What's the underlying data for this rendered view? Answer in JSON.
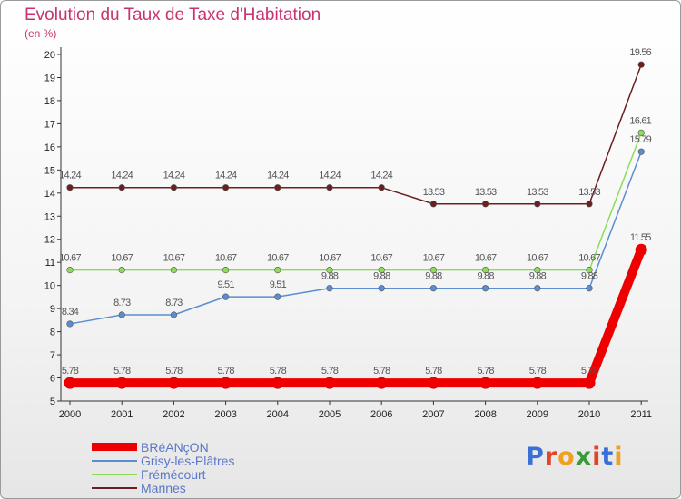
{
  "title": "Evolution du Taux de Taxe d'Habitation",
  "subtitle": "(en %)",
  "logo": {
    "text": "Proxiti",
    "letter_colors": [
      "#3a6fd8",
      "#e0452a",
      "#f0a020",
      "#3a9a3a",
      "#e0452a",
      "#3a6fd8",
      "#f0a020"
    ]
  },
  "chart_data": {
    "type": "line",
    "title": "Evolution du Taux de Taxe d'Habitation",
    "ylabel": "(en %)",
    "xlabel": "",
    "x": [
      "2000",
      "2001",
      "2002",
      "2003",
      "2004",
      "2005",
      "2006",
      "2007",
      "2008",
      "2009",
      "2010",
      "2011"
    ],
    "ylim": [
      5,
      20
    ],
    "yticks": [
      "5",
      "6",
      "7",
      "8",
      "9",
      "10",
      "11",
      "12",
      "13",
      "14",
      "15",
      "16",
      "17",
      "18",
      "19",
      "20"
    ],
    "grid": false,
    "legend_position": "bottom-left",
    "series": [
      {
        "name": "BRéANçON",
        "color": "#ee0000",
        "thick": true,
        "values": [
          5.78,
          5.78,
          5.78,
          5.78,
          5.78,
          5.78,
          5.78,
          5.78,
          5.78,
          5.78,
          5.78,
          11.55
        ],
        "labels": [
          "5.78",
          "5.78",
          "5.78",
          "5.78",
          "5.78",
          "5.78",
          "5.78",
          "5.78",
          "5.78",
          "5.78",
          "5.78",
          "11.55"
        ]
      },
      {
        "name": "Grisy-les-Plâtres",
        "color": "#5b8ed0",
        "thick": false,
        "values": [
          8.34,
          8.73,
          8.73,
          9.51,
          9.51,
          9.88,
          9.88,
          9.88,
          9.88,
          9.88,
          9.88,
          15.79
        ],
        "labels": [
          "8.34",
          "8.73",
          "8.73",
          "9.51",
          "9.51",
          "9.88",
          "9.88",
          "9.88",
          "9.88",
          "9.88",
          "9.88",
          "15.79"
        ]
      },
      {
        "name": "Frémécourt",
        "color": "#8cdc5a",
        "thick": false,
        "values": [
          10.67,
          10.67,
          10.67,
          10.67,
          10.67,
          10.67,
          10.67,
          10.67,
          10.67,
          10.67,
          10.67,
          16.61
        ],
        "labels": [
          "10.67",
          "10.67",
          "10.67",
          "10.67",
          "10.67",
          "10.67",
          "10.67",
          "10.67",
          "10.67",
          "10.67",
          "10.67",
          "16.61"
        ]
      },
      {
        "name": "Marines",
        "color": "#6e1e1e",
        "thick": false,
        "values": [
          14.24,
          14.24,
          14.24,
          14.24,
          14.24,
          14.24,
          14.24,
          13.53,
          13.53,
          13.53,
          13.53,
          19.56
        ],
        "labels": [
          "14.24",
          "14.24",
          "14.24",
          "14.24",
          "14.24",
          "14.24",
          "14.24",
          "13.53",
          "13.53",
          "13.53",
          "13.53",
          "19.56"
        ]
      }
    ]
  }
}
